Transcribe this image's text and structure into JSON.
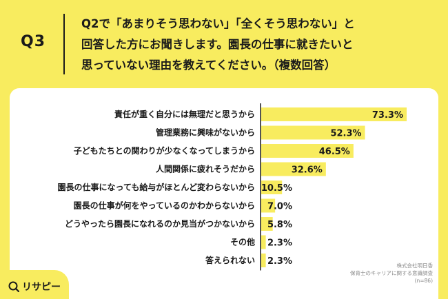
{
  "header": {
    "qnum": "Q3",
    "line1": "Q2で「あまりそう思わない」「全くそう思わない」と",
    "line2": "回答した方にお聞きします。園長の仕事に就きたいと",
    "line3": "思っていない理由を教えてください。（複数回答）"
  },
  "source": {
    "line1": "株式会社明日香",
    "line2": "保育士のキャリアに関する意識調査",
    "line3": "(n=86)"
  },
  "logo": {
    "text": "リサピー",
    "icon": "magnifier-icon"
  },
  "colors": {
    "background": "#f8ec5f",
    "bar": "#f8ec5f",
    "axis": "#1a1a1a",
    "card": "#ffffff"
  },
  "chart_data": {
    "type": "bar",
    "orientation": "horizontal",
    "categories": [
      "責任が重く自分には無理だと思うから",
      "管理業務に興味がないから",
      "子どもたちとの関わりが少なくなってしまうから",
      "人間関係に疲れそうだから",
      "園長の仕事になっても給与がほとんど変わらないから",
      "園長の仕事が何をやっているのかわからないから",
      "どうやったら園長になれるのか見当がつかないから",
      "その他",
      "答えられない"
    ],
    "values": [
      73.3,
      52.3,
      46.5,
      32.6,
      10.5,
      7.0,
      5.8,
      2.3,
      2.3
    ],
    "value_labels": [
      "73.3%",
      "52.3%",
      "46.5%",
      "32.6%",
      "10.5%",
      "7.0%",
      "5.8%",
      "2.3%",
      "2.3%"
    ],
    "unit": "%",
    "xlim": [
      0,
      80
    ]
  }
}
